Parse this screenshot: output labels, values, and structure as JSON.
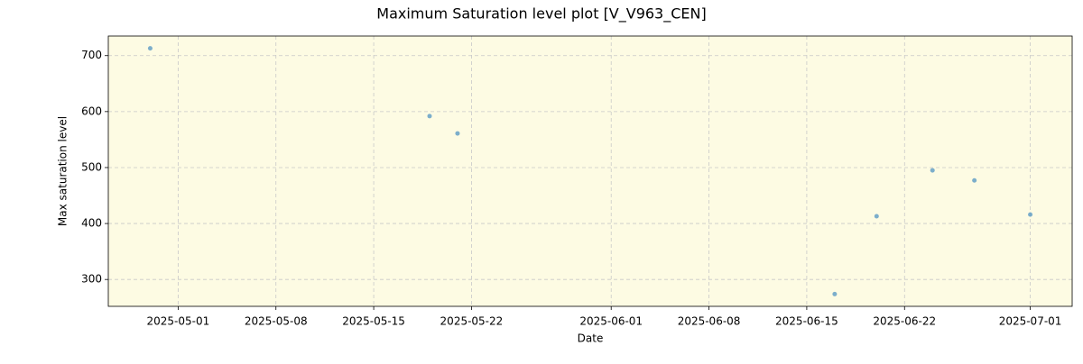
{
  "chart_data": {
    "type": "scatter",
    "title": "Maximum Saturation level plot [V_V963_CEN]",
    "x_label": "Date",
    "y_label": "Max saturation level",
    "series": [
      {
        "color": "#5b9bc4",
        "x": [
          "2025-04-29",
          "2025-05-19",
          "2025-05-21",
          "2025-06-17",
          "2025-06-20",
          "2025-06-24",
          "2025-06-27",
          "2025-07-01"
        ],
        "values": [
          713,
          592,
          561,
          274,
          413,
          495,
          477,
          416
        ]
      }
    ],
    "xlim": [
      "2025-04-26",
      "2025-07-04"
    ],
    "xticks": [
      "2025-05-01",
      "2025-05-08",
      "2025-05-15",
      "2025-05-22",
      "2025-06-01",
      "2025-06-08",
      "2025-06-15",
      "2025-06-22",
      "2025-07-01"
    ],
    "ylim": [
      252,
      735
    ],
    "yticks": [
      300,
      400,
      500,
      600,
      700
    ],
    "grid": true,
    "background": "#fdfbe3"
  }
}
